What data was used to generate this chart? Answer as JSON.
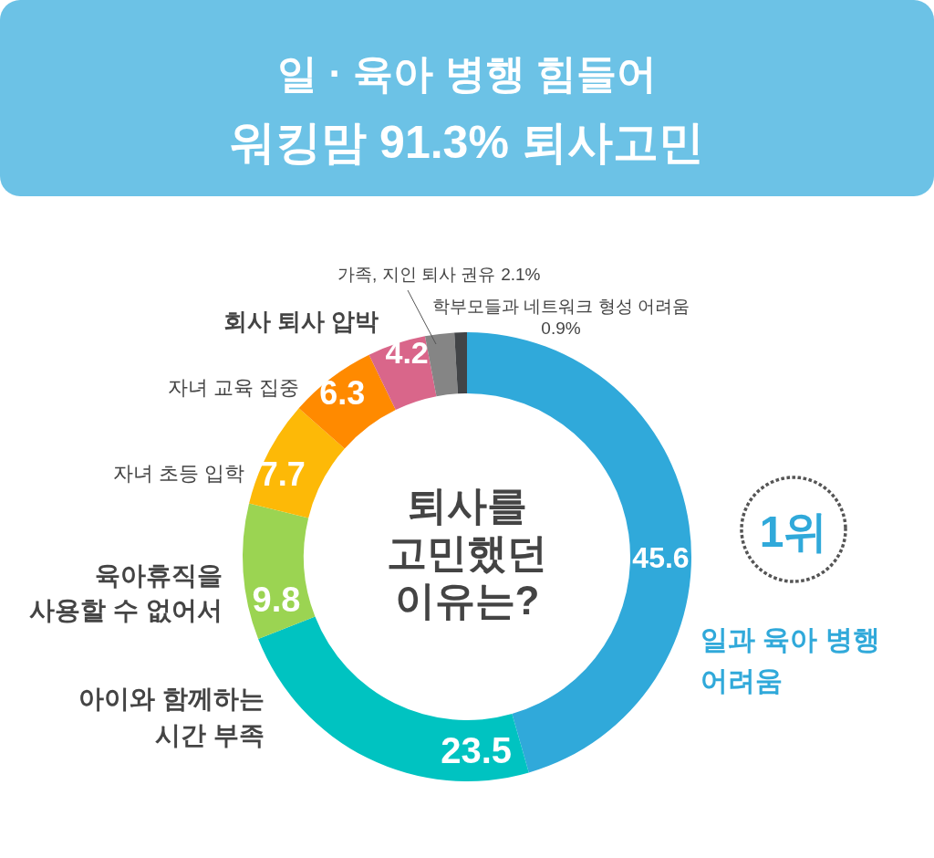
{
  "chart_data": {
    "type": "donut",
    "title": "일 · 육아 병행 힘들어\n워킹맘 91.3% 퇴사고민",
    "categories": [
      "일과 육아 병행\n어려움",
      "아이와 함께하는\n시간 부족",
      "육아휴직을\n사용할 수 없어서",
      "자녀 초등 입학",
      "자녀 교육 집중",
      "회사 퇴사 압박",
      "가족, 지인 퇴사 권유",
      "학부모들과 네트워크 형성 어려움"
    ],
    "values": [
      45.6,
      23.5,
      9.8,
      7.7,
      6.3,
      4.2,
      2.1,
      0.9
    ],
    "colors": [
      "#30a9da",
      "#00c3c1",
      "#9bd452",
      "#fdb907",
      "#ff8a00",
      "#d9668a",
      "#858585",
      "#424447"
    ],
    "value_labels": [
      "45.6",
      "23.5",
      "9.8",
      "7.7",
      "6.3",
      "4.2",
      "2.1%",
      "0.9%"
    ],
    "annotations": [
      "퇴사를\n고민했던\n이유는?",
      "1위"
    ]
  }
}
